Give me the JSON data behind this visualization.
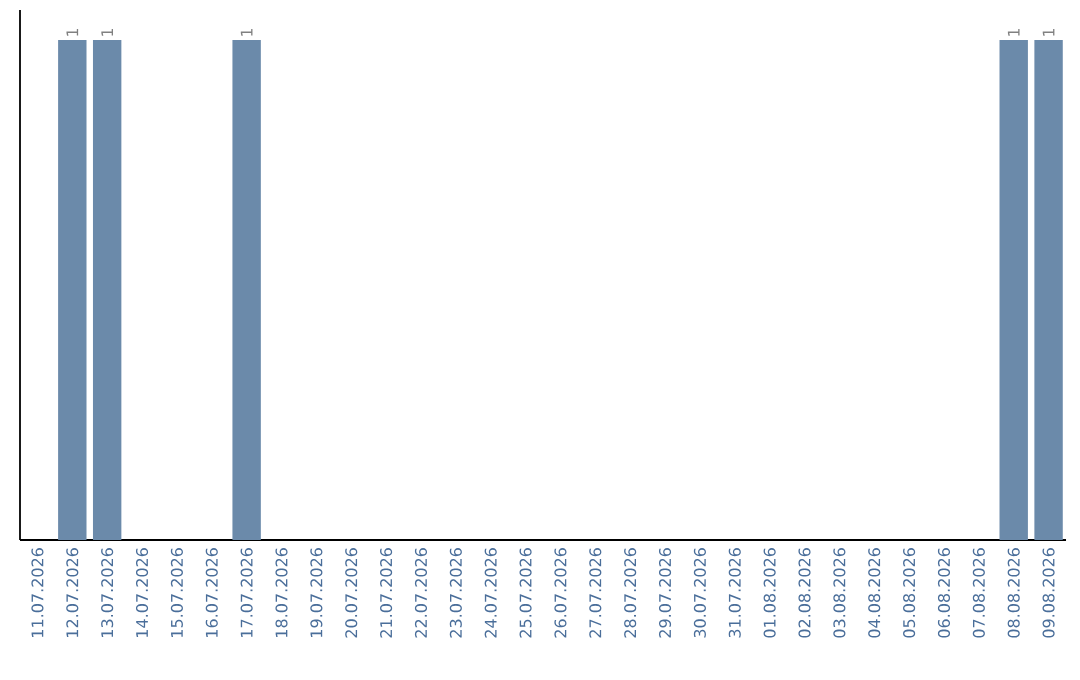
{
  "chart_data": {
    "type": "bar",
    "categories": [
      "11.07.2026",
      "12.07.2026",
      "13.07.2026",
      "14.07.2026",
      "15.07.2026",
      "16.07.2026",
      "17.07.2026",
      "18.07.2026",
      "19.07.2026",
      "20.07.2026",
      "21.07.2026",
      "22.07.2026",
      "23.07.2026",
      "24.07.2026",
      "25.07.2026",
      "26.07.2026",
      "27.07.2026",
      "28.07.2026",
      "29.07.2026",
      "30.07.2026",
      "31.07.2026",
      "01.08.2026",
      "02.08.2026",
      "03.08.2026",
      "04.08.2026",
      "05.08.2026",
      "06.08.2026",
      "07.08.2026",
      "08.08.2026",
      "09.08.2026"
    ],
    "values": [
      0,
      1,
      1,
      0,
      0,
      0,
      1,
      0,
      0,
      0,
      0,
      0,
      0,
      0,
      0,
      0,
      0,
      0,
      0,
      0,
      0,
      0,
      0,
      0,
      0,
      0,
      0,
      0,
      1,
      1
    ],
    "value_labels": [
      null,
      "1",
      "1",
      null,
      null,
      null,
      "1",
      null,
      null,
      null,
      null,
      null,
      null,
      null,
      null,
      null,
      null,
      null,
      null,
      null,
      null,
      null,
      null,
      null,
      null,
      null,
      null,
      null,
      "1",
      "1"
    ],
    "color": "#6b8aaa",
    "ylim": [
      0,
      1.06
    ],
    "tick_labels": "x"
  }
}
